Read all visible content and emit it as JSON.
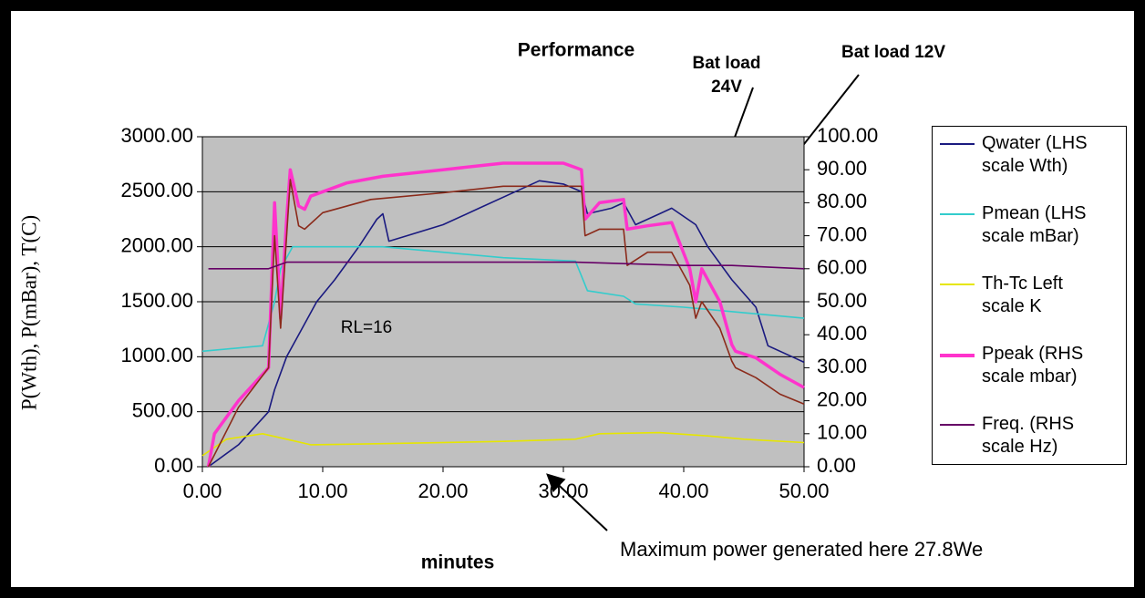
{
  "chart_data": {
    "type": "line",
    "title": "Performance",
    "x_label": "minutes",
    "y_label": "P(Wth), P(mBar), T(C)",
    "annotations": [
      "Bat load",
      "24V",
      "Bat load 12V",
      "RL=16",
      "Maximum power generated here 27.8We"
    ],
    "background": "#c0c0c0",
    "grid": true,
    "xlim": [
      0,
      50
    ],
    "xticks": [
      {
        "value": 0,
        "label": "0.00"
      },
      {
        "value": 10,
        "label": "10.00"
      },
      {
        "value": 20,
        "label": "20.00"
      },
      {
        "value": 30,
        "label": "30.00"
      },
      {
        "value": 40,
        "label": "40.00"
      },
      {
        "value": 50,
        "label": "50.00"
      }
    ],
    "ylim": [
      0,
      3000
    ],
    "yticks": [
      {
        "value": 0,
        "label": "0.00"
      },
      {
        "value": 500,
        "label": "500.00"
      },
      {
        "value": 1000,
        "label": "1000.00"
      },
      {
        "value": 1500,
        "label": "1500.00"
      },
      {
        "value": 2000,
        "label": "2000.00"
      },
      {
        "value": 2500,
        "label": "2500.00"
      },
      {
        "value": 3000,
        "label": "3000.00"
      }
    ],
    "y2lim": [
      0,
      100
    ],
    "y2ticks": [
      {
        "value": 0,
        "label": "0.00"
      },
      {
        "value": 10,
        "label": "10.00"
      },
      {
        "value": 20,
        "label": "20.00"
      },
      {
        "value": 30,
        "label": "30.00"
      },
      {
        "value": 40,
        "label": "40.00"
      },
      {
        "value": 50,
        "label": "50.00"
      },
      {
        "value": 60,
        "label": "60.00"
      },
      {
        "value": 70,
        "label": "70.00"
      },
      {
        "value": 80,
        "label": "80.00"
      },
      {
        "value": 90,
        "label": "90.00"
      },
      {
        "value": 100,
        "label": "100.00"
      }
    ],
    "series": [
      {
        "name": "Qwater (LHS scale Wth)",
        "color": "#1a1a80",
        "axis": "y",
        "x": [
          0.5,
          3,
          5.5,
          6,
          7,
          8,
          9.5,
          11,
          13,
          14.5,
          15,
          15.5,
          17,
          20,
          23,
          26,
          28,
          30,
          31.5,
          32,
          34,
          35,
          36,
          38,
          39,
          41,
          42,
          44,
          46,
          47,
          49,
          50
        ],
        "values": [
          0,
          200,
          500,
          700,
          1000,
          1200,
          1500,
          1700,
          2000,
          2250,
          2300,
          2050,
          2100,
          2200,
          2350,
          2500,
          2600,
          2570,
          2500,
          2300,
          2350,
          2400,
          2200,
          2300,
          2350,
          2200,
          2000,
          1700,
          1450,
          1100,
          1000,
          950
        ]
      },
      {
        "name": "Pmean (LHS scale mBar)",
        "color": "#33cccc",
        "axis": "y",
        "x": [
          0,
          5,
          6,
          6.5,
          7.5,
          15,
          20,
          25,
          31,
          32,
          35,
          36,
          40,
          45,
          50
        ],
        "values": [
          1050,
          1100,
          1500,
          1800,
          2000,
          2000,
          1950,
          1900,
          1870,
          1600,
          1550,
          1480,
          1450,
          1400,
          1350
        ]
      },
      {
        "name": "Th-Tc Left scale K",
        "color": "#e6e600",
        "axis": "y",
        "x": [
          0,
          2,
          5,
          7,
          9,
          15,
          25,
          31,
          33,
          38,
          42,
          45,
          50
        ],
        "values": [
          100,
          250,
          300,
          250,
          200,
          210,
          230,
          250,
          300,
          310,
          280,
          250,
          220
        ]
      },
      {
        "name": "Ppeak (RHS scale mbar)",
        "color": "#ff33cc",
        "axis": "y2",
        "x": [
          0.5,
          1,
          3,
          5.5,
          6,
          6.5,
          7,
          7.3,
          8,
          8.5,
          9,
          12,
          15,
          20,
          25,
          30,
          31.5,
          31.8,
          33,
          35,
          35.3,
          37,
          39,
          40.5,
          41,
          41.5,
          43,
          44,
          44.3,
          46,
          48,
          50
        ],
        "values": [
          0,
          10,
          20,
          30,
          80,
          45,
          75,
          90,
          79,
          78,
          82,
          86,
          88,
          90,
          92,
          92,
          90,
          75,
          80,
          81,
          72,
          73,
          74,
          60,
          50,
          60,
          50,
          37,
          35,
          33,
          28,
          24
        ]
      },
      {
        "color": "#8b2a1a",
        "axis": "y2",
        "x": [
          0.5,
          3,
          5.5,
          6,
          6.5,
          7,
          7.3,
          8,
          8.5,
          10,
          14,
          20,
          25,
          31.5,
          31.8,
          33,
          35,
          35.3,
          37,
          39,
          40.5,
          41,
          41.5,
          43,
          44,
          44.3,
          46,
          48,
          50
        ],
        "values": [
          0,
          18,
          30,
          70,
          42,
          70,
          87,
          73,
          72,
          77,
          81,
          83,
          85,
          85,
          70,
          72,
          72,
          61,
          65,
          65,
          55,
          45,
          50,
          42,
          32,
          30,
          27,
          22,
          19
        ]
      },
      {
        "name": "Freq. (RHS scale Hz)",
        "color": "#660066",
        "axis": "y2",
        "x": [
          0.5,
          5.5,
          7,
          31,
          40,
          44,
          50
        ],
        "values": [
          60,
          60,
          62,
          62,
          61,
          61,
          60
        ]
      }
    ]
  }
}
